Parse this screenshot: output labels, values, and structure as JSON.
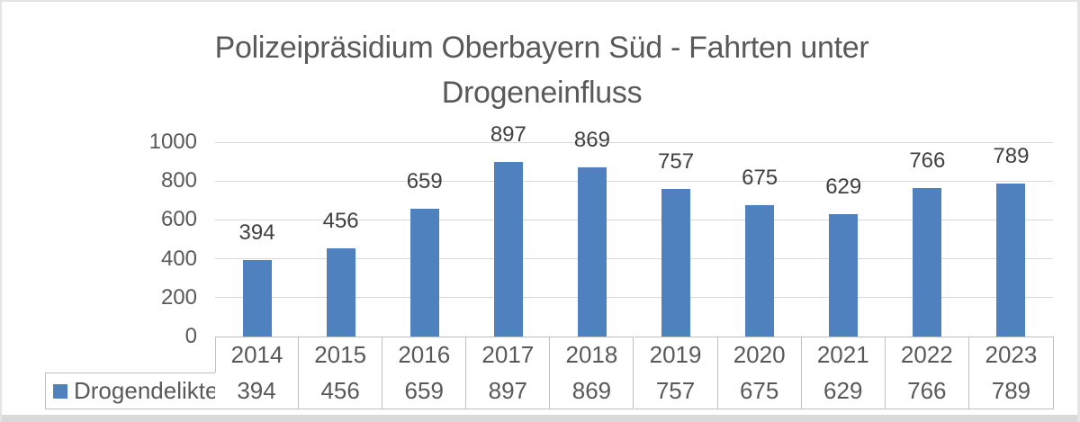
{
  "chart_data": {
    "type": "bar",
    "title": "Polizeipräsidium Oberbayern Süd - Fahrten unter Drogeneinfluss",
    "title_lines": [
      "Polizeipräsidium Oberbayern Süd - Fahrten unter",
      "Drogeneinfluss"
    ],
    "categories": [
      "2014",
      "2015",
      "2016",
      "2017",
      "2018",
      "2019",
      "2020",
      "2021",
      "2022",
      "2023"
    ],
    "series": [
      {
        "name": "Drogendelikte",
        "values": [
          394,
          456,
          659,
          897,
          869,
          757,
          675,
          629,
          766,
          789
        ]
      }
    ],
    "xlabel": "",
    "ylabel": "",
    "y_axis": {
      "min": 0,
      "max": 1000,
      "step": 200,
      "tick_labels": [
        "0",
        "200",
        "400",
        "600",
        "800",
        "1000"
      ]
    },
    "grid": true,
    "data_labels": true,
    "legend_position": "bottom-table-left",
    "legend_swatch_icon": "blue-square-icon",
    "colors": {
      "bar": "#4e81bd",
      "gridline": "#d9d9d9",
      "table_border": "#bfbfbf",
      "axis_text": "#595959",
      "title_text": "#595959",
      "data_label_text": "#404040",
      "bottom_strip": "#d9d9d9"
    }
  }
}
